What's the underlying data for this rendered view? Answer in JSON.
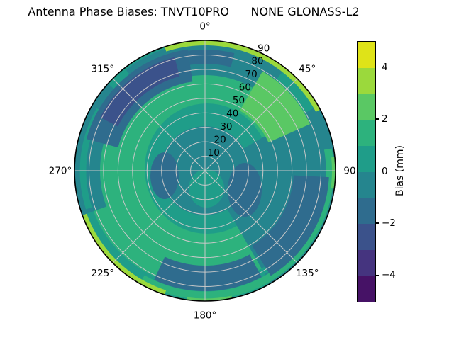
{
  "title": "Antenna Phase Biases: TNVT10PRO      NONE GLONASS-L2",
  "chart_data": {
    "type": "heatmap",
    "subtype": "polar_filled_contour",
    "title": "Antenna Phase Biases: TNVT10PRO      NONE GLONASS-L2",
    "angular_ticks_deg": [
      0,
      45,
      90,
      135,
      180,
      225,
      270,
      315
    ],
    "angular_tick_labels": [
      "0°",
      "45°",
      "90",
      "135°",
      "180°",
      "225°",
      "270°",
      "315°"
    ],
    "radial_ticks": [
      10,
      20,
      30,
      40,
      50,
      60,
      70,
      80,
      90
    ],
    "radial_tick_labels": [
      "10",
      "20",
      "30",
      "40",
      "50",
      "60",
      "70",
      "80",
      "90"
    ],
    "radial_range": [
      0,
      90
    ],
    "grid": true,
    "grid_color": "#c8c8c8",
    "colorbar": {
      "label": "Bias (mm)",
      "tick_values": [
        4,
        2,
        0,
        -2,
        -4
      ],
      "tick_labels": [
        "4",
        "2",
        "0",
        "−2",
        "−4"
      ],
      "range": [
        -5,
        5
      ],
      "levels": [
        -5,
        -4,
        -3,
        -2,
        -1,
        0,
        1,
        2,
        3,
        4,
        5
      ],
      "colors_bottom_to_top": [
        "#461266",
        "#45347f",
        "#3b528b",
        "#2f6c8e",
        "#25858e",
        "#1f9d89",
        "#2db27d",
        "#5ac864",
        "#9bd93c",
        "#dfe318"
      ],
      "position": "right"
    },
    "values": {
      "description": "Bias (mm) estimated from contour colors; rows = azimuth_deg, cols = zenith_deg",
      "azimuth_deg": [
        0,
        45,
        90,
        135,
        180,
        225,
        270,
        315
      ],
      "zenith_deg": [
        10,
        20,
        30,
        40,
        50,
        60,
        70,
        80,
        90
      ],
      "bias_mm": [
        [
          -0.5,
          -0.5,
          -0.5,
          0.5,
          1.5,
          1.5,
          -0.5,
          -0.5,
          3.5
        ],
        [
          -0.5,
          -0.5,
          -1.5,
          0.5,
          1.5,
          2.5,
          2.5,
          2.5,
          4.5
        ],
        [
          -0.5,
          -1.5,
          -1.5,
          -1.5,
          -1.5,
          -0.5,
          0.5,
          1.5,
          2.5
        ],
        [
          -0.5,
          -0.5,
          -0.5,
          -1.5,
          -1.5,
          -1.5,
          -1.5,
          -1.5,
          0.5
        ],
        [
          0.5,
          0.5,
          1.5,
          1.5,
          1.5,
          -0.5,
          -1.5,
          -0.5,
          1.5
        ],
        [
          0.5,
          0.5,
          1.5,
          1.5,
          1.5,
          1.5,
          1.5,
          2.5,
          4.5
        ],
        [
          -0.5,
          -1.5,
          -1.5,
          -1.5,
          1.5,
          1.5,
          0.5,
          -0.5,
          0.5
        ],
        [
          -0.5,
          -0.5,
          -0.5,
          0.5,
          -0.5,
          -2.5,
          -2.5,
          -2.5,
          -0.5
        ]
      ]
    }
  }
}
